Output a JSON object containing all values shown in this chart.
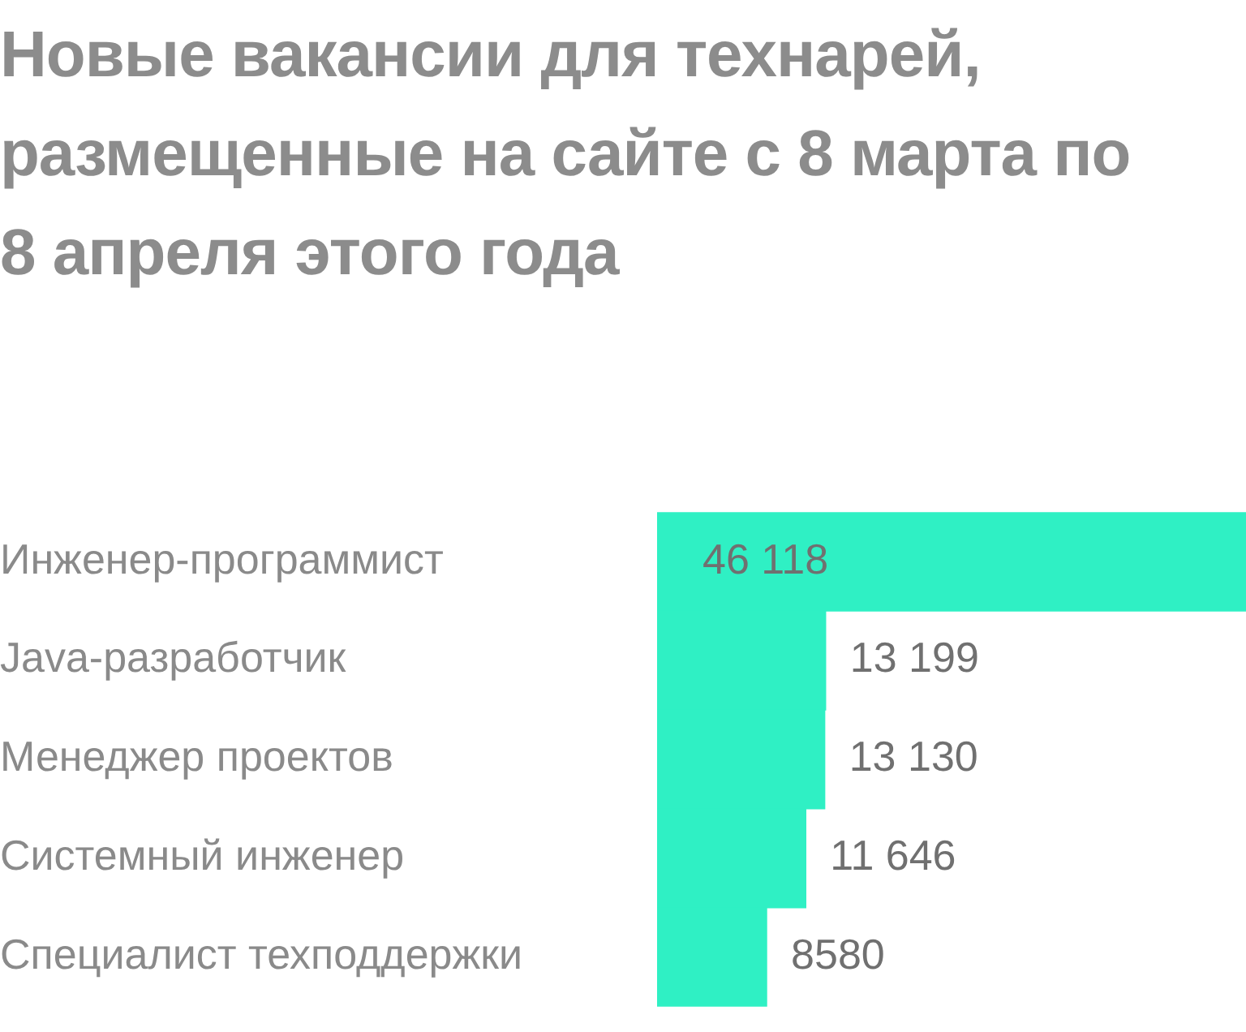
{
  "chart_data": {
    "type": "bar",
    "orientation": "horizontal",
    "title": "Новые вакансии для технарей, размещенные на сайте с 8 марта по 8 апреля этого года",
    "categories": [
      "Инженер-программист",
      "Java-разработчик",
      "Менеджер проектов",
      "Системный инженер",
      "Специалист техподдержки"
    ],
    "values": [
      46118,
      13199,
      13130,
      11646,
      8580
    ],
    "value_labels": [
      "46 118",
      "13 199",
      "13 130",
      "11 646",
      "8580"
    ],
    "color": "#2ff0c4",
    "grid": false,
    "legend": false
  }
}
